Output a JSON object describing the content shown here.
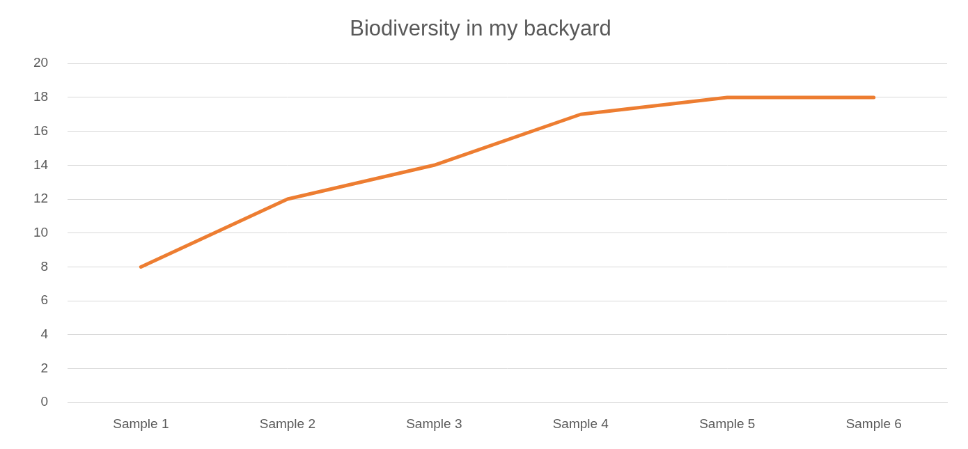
{
  "chart_data": {
    "type": "line",
    "title": "Biodiversity in my backyard",
    "categories": [
      "Sample 1",
      "Sample 2",
      "Sample 3",
      "Sample 4",
      "Sample 5",
      "Sample 6"
    ],
    "values": [
      8,
      12,
      14,
      17,
      18,
      18
    ],
    "color": "#ed7d31",
    "ylim": [
      0,
      20
    ],
    "yticks": [
      0,
      2,
      4,
      6,
      8,
      10,
      12,
      14,
      16,
      18,
      20
    ],
    "grid": true
  }
}
